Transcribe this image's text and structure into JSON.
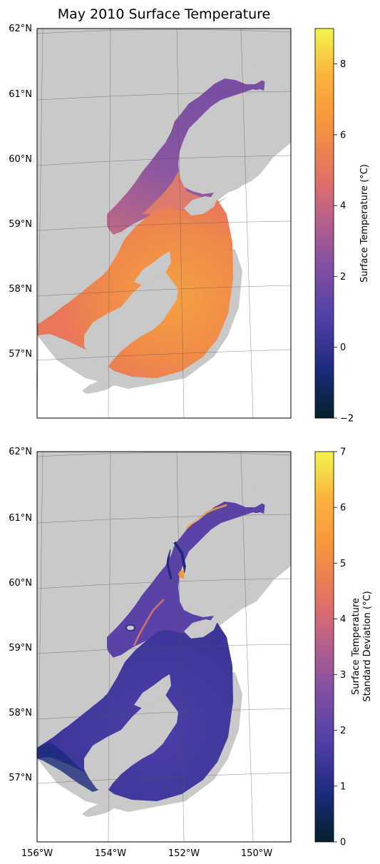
{
  "title": "May 2010 Surface Temperature",
  "latitude_labels": [
    "62°N",
    "61°N",
    "60°N",
    "59°N",
    "58°N",
    "57°N"
  ],
  "longitude_labels": [
    "156°W",
    "154°W",
    "152°W",
    "150°W"
  ],
  "panels": [
    {
      "name": "temperature",
      "colorbar": {
        "label": "Surface Temperature (°C)",
        "label_lines": [
          "Surface Temperature (°C)"
        ],
        "min": -2,
        "max": 9,
        "ticks": [
          -2,
          0,
          2,
          4,
          6,
          8
        ],
        "colormap": "thermal"
      }
    },
    {
      "name": "std",
      "colorbar": {
        "label": "Surface Temperature Standard Deviation (°C)",
        "label_lines": [
          "Surface Temperature",
          "Standard Deviation (°C)"
        ],
        "min": 0,
        "max": 7,
        "ticks": [
          0,
          1,
          2,
          3,
          4,
          5,
          6,
          7
        ],
        "colormap": "thermal"
      }
    }
  ],
  "colors": {
    "land": "#c9c9c9",
    "background": "#ffffff",
    "gradient": [
      "#04202b",
      "#1b2a7a",
      "#4e3fa5",
      "#7d4fa3",
      "#b45e8e",
      "#e47264",
      "#f5933e",
      "#fbb33b",
      "#f2f54d"
    ]
  },
  "chart_data": {
    "type": "heatmap",
    "title": "May 2010 Surface Temperature",
    "panels": [
      {
        "variable": "Surface Temperature (°C)",
        "vmin": -2,
        "vmax": 9,
        "typical_value_bay": 5.5,
        "typical_value_upper_inlet": 2.0
      },
      {
        "variable": "Surface Temperature Standard Deviation (°C)",
        "vmin": 0,
        "vmax": 7,
        "typical_value_bay": 1.5,
        "max_value_upper_inlet": 6.5
      }
    ],
    "lat_range": [
      56.0,
      62.0
    ],
    "lon_range": [
      -156.0,
      -149.0
    ]
  }
}
